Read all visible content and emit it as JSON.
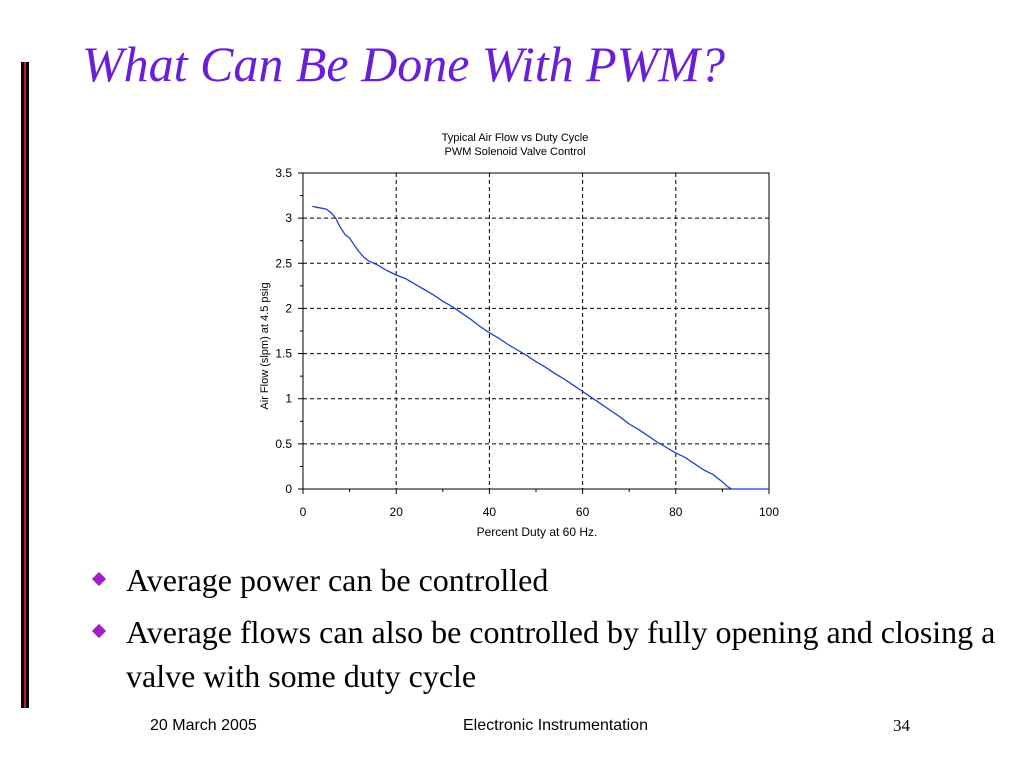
{
  "slide": {
    "title": "What Can Be Done With PWM?",
    "bullets": [
      "Average power can be controlled",
      "Average flows can also be controlled by fully opening and closing a valve with some duty cycle"
    ],
    "footer": {
      "date": "20 March 2005",
      "center": "Electronic Instrumentation",
      "page": "34"
    },
    "colors": {
      "title": "#6a1fd6",
      "bullet": "#a020c8",
      "left_bar": "#c8141e",
      "series": "#1f3fd6"
    }
  },
  "chart_data": {
    "type": "line",
    "title": "Typical Air Flow vs Duty Cycle",
    "subtitle": "PWM Solenoid Valve Control",
    "xlabel": "Percent Duty at 60 Hz.",
    "ylabel": "Air Flow (slpm) at 4.5 psig",
    "xlim": [
      0,
      100
    ],
    "ylim": [
      0,
      3.5
    ],
    "xticks": [
      0,
      20,
      40,
      60,
      80,
      100
    ],
    "yticks": [
      0,
      0.5,
      1,
      1.5,
      2,
      2.5,
      3,
      3.5
    ],
    "ytick_labels": [
      "0",
      "0.5",
      "1",
      "1.5",
      "2",
      "2.5",
      "3",
      "3.5"
    ],
    "grid": true,
    "series": [
      {
        "color": "#1f3fd6",
        "x": [
          2,
          3,
          4,
          5,
          6,
          7,
          8,
          9,
          10,
          11,
          12,
          13,
          14,
          16,
          18,
          20,
          22,
          24,
          26,
          28,
          30,
          32,
          34,
          36,
          38,
          40,
          42,
          44,
          46,
          48,
          50,
          52,
          54,
          56,
          58,
          60,
          62,
          64,
          66,
          68,
          70,
          72,
          74,
          76,
          78,
          80,
          82,
          84,
          86,
          88,
          89,
          90,
          91,
          92,
          94,
          96,
          98,
          100
        ],
        "y": [
          3.13,
          3.12,
          3.11,
          3.1,
          3.06,
          3.0,
          2.9,
          2.82,
          2.78,
          2.7,
          2.63,
          2.57,
          2.53,
          2.48,
          2.42,
          2.37,
          2.33,
          2.27,
          2.21,
          2.15,
          2.08,
          2.02,
          1.95,
          1.88,
          1.8,
          1.73,
          1.67,
          1.6,
          1.54,
          1.48,
          1.41,
          1.35,
          1.28,
          1.22,
          1.15,
          1.08,
          1.01,
          0.94,
          0.87,
          0.8,
          0.72,
          0.66,
          0.59,
          0.52,
          0.46,
          0.4,
          0.35,
          0.28,
          0.21,
          0.16,
          0.12,
          0.08,
          0.03,
          0.0,
          0.0,
          0.0,
          0.0,
          0.0
        ]
      }
    ]
  }
}
